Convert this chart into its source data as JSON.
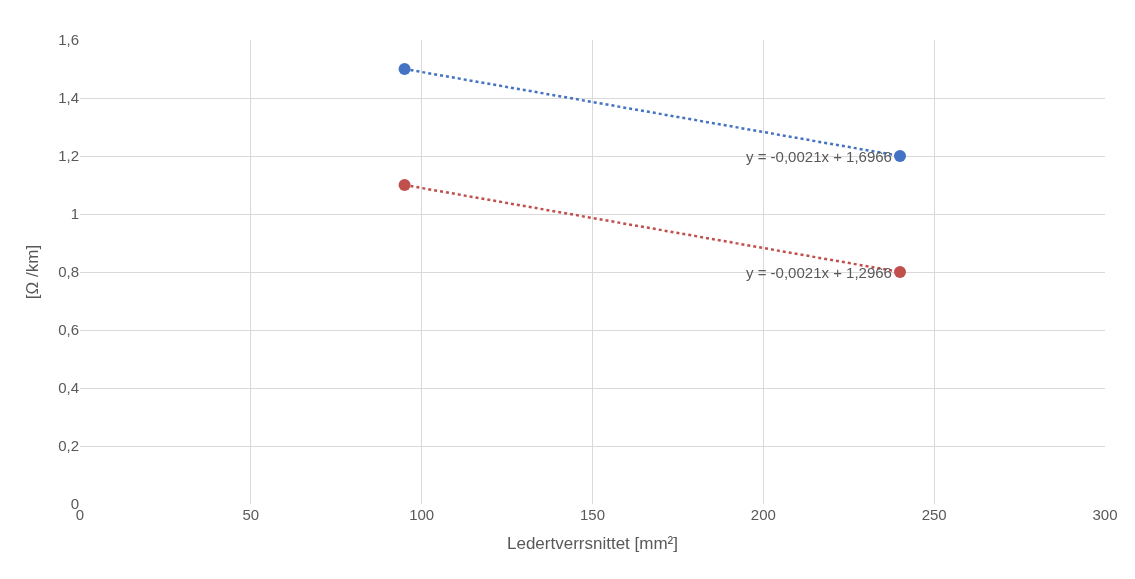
{
  "chart_data": {
    "type": "line",
    "marker": "circle",
    "line_style": "dotted",
    "x": [
      95,
      240
    ],
    "xlabel": "Ledertverrsnittet [mm²]",
    "ylabel": "[Ω /km]",
    "xlim": [
      0,
      300
    ],
    "xticks": [
      0,
      50,
      100,
      150,
      200,
      250,
      300
    ],
    "ylim": [
      0,
      1.6
    ],
    "yticks": [
      0,
      {
        "value": 0.2,
        "label": "0,2"
      },
      {
        "value": 0.4,
        "label": "0,4"
      },
      {
        "value": 0.6,
        "label": "0,6"
      },
      {
        "value": 0.8,
        "label": "0,8"
      },
      1,
      {
        "value": 1.2,
        "label": "1,2"
      },
      {
        "value": 1.4,
        "label": "1,4"
      },
      {
        "value": 1.6,
        "label": "1,6"
      }
    ],
    "grid": true,
    "series": [
      {
        "values": [
          1.5,
          1.2
        ],
        "color": "#4472c4"
      },
      {
        "values": [
          1.1,
          0.8
        ],
        "color": "#c0504d"
      }
    ],
    "annotations": [
      {
        "text": "y = -0,0021x + 1,6966",
        "x": 240,
        "y": 1.2
      },
      {
        "text": "y = -0,0021x + 1,2966",
        "x": 240,
        "y": 0.8
      }
    ]
  }
}
